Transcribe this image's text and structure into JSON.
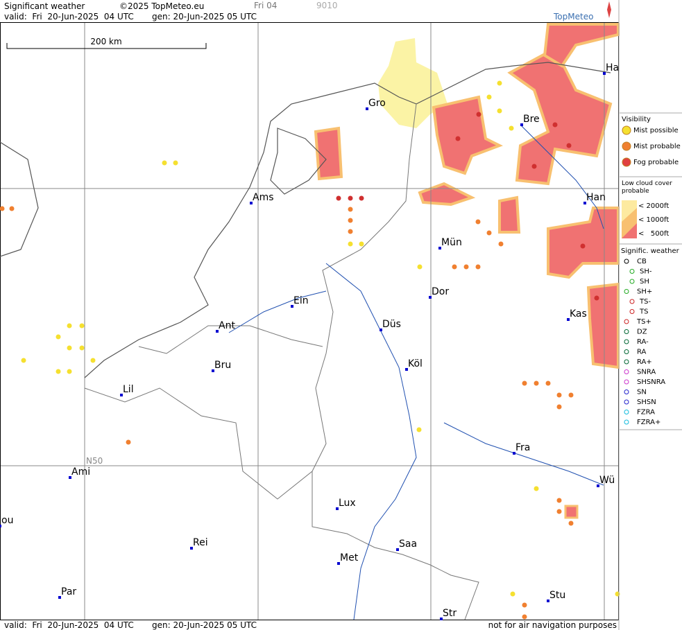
{
  "header": {
    "title": "Significant weather",
    "copyright": "©2025 TopMeteo.eu",
    "frame": "Fri 04",
    "code": "9010",
    "valid": "valid:  Fri  20-Jun-2025  04 UTC",
    "gen": "gen: 20-Jun-2025 05 UTC",
    "brand": "TopMeteo"
  },
  "map": {
    "scale": "200 km",
    "latitude_label": "N50",
    "cities": [
      "Gro",
      "Bre",
      "Ha",
      "Ams",
      "Han",
      "Mün",
      "Dor",
      "Ein",
      "Ant",
      "Düs",
      "Köl",
      "Bru",
      "Lil",
      "Kas",
      "Fra",
      "Ami",
      "Lux",
      "Wü",
      "ou",
      "Rei",
      "Saa",
      "Met",
      "Par",
      "Stu",
      "Str"
    ]
  },
  "legend": {
    "visibility": {
      "title": "Visibility",
      "items": [
        "Mist possible",
        "Mist probable",
        "Fog probable"
      ]
    },
    "cloud": {
      "title": "Low cloud cover probable",
      "items": [
        "< 2000ft",
        "< 1000ft",
        "<   500ft"
      ]
    },
    "weather": {
      "title": "Signific. weather",
      "items": [
        "CB",
        "SH-",
        "SH",
        "SH+",
        "TS-",
        "TS",
        "TS+",
        "DZ",
        "RA-",
        "RA",
        "RA+",
        "SNRA",
        "SHSNRA",
        "SN",
        "SHSN",
        "FZRA",
        "FZRA+"
      ]
    }
  },
  "footer": {
    "valid": "valid:  Fri  20-Jun-2025  04 UTC",
    "gen": "gen: 20-Jun-2025 05 UTC",
    "disclaimer": "not for air navigation purposes"
  }
}
